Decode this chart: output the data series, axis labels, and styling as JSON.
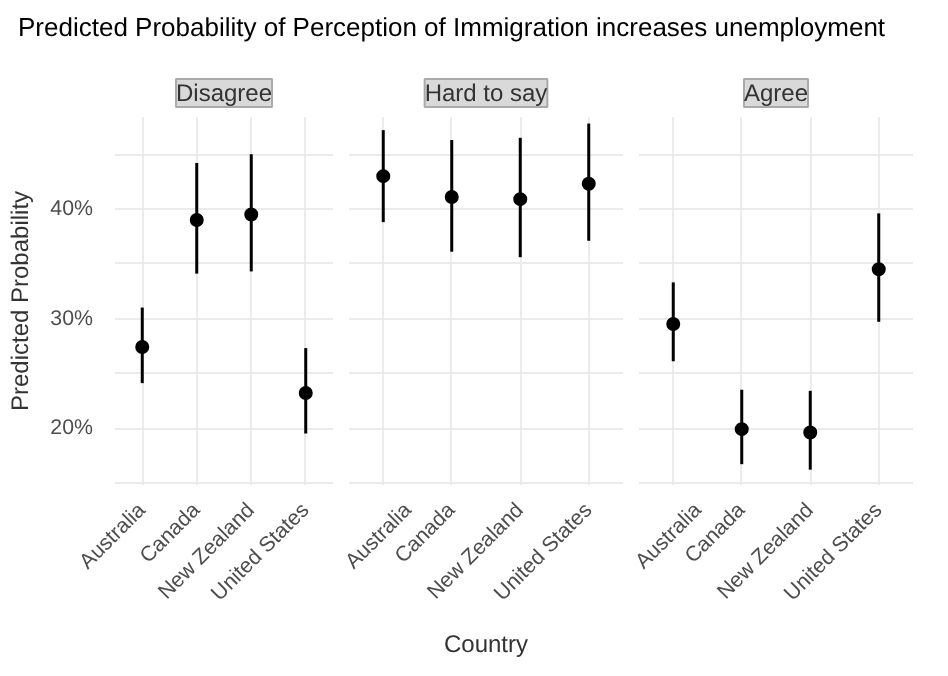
{
  "chart_data": [
    {
      "type": "scatter",
      "title": "Predicted Probability of Perception of Immigration increases unemployment",
      "subtitle": "Disagree",
      "ylabel": "Predicted Probability",
      "categories": [
        "Australia",
        "Canada",
        "New Zealand",
        "United States"
      ],
      "values": [
        27.4,
        39.0,
        39.5,
        23.2
      ],
      "errors": [
        [
          24.1,
          31.0
        ],
        [
          34.1,
          44.2
        ],
        [
          34.3,
          45.0
        ],
        [
          19.5,
          27.3
        ]
      ],
      "color": "#000000",
      "marker": "circle",
      "ylim": [
        14.8,
        48.4
      ],
      "yticks": [
        {
          "value": 15,
          "label": null
        },
        {
          "value": 20,
          "label": "20%"
        },
        {
          "value": 25,
          "label": null
        },
        {
          "value": 30,
          "label": "30%"
        },
        {
          "value": 35,
          "label": null
        },
        {
          "value": 40,
          "label": "40%"
        },
        {
          "value": 45,
          "label": null
        }
      ],
      "grid": true
    },
    {
      "type": "scatter",
      "subtitle": "Hard to say",
      "xlabel": "Country",
      "categories": [
        "Australia",
        "Canada",
        "New Zealand",
        "United States"
      ],
      "values": [
        43.0,
        41.1,
        40.9,
        42.3
      ],
      "errors": [
        [
          38.8,
          47.2
        ],
        [
          36.1,
          46.3
        ],
        [
          35.6,
          46.5
        ],
        [
          37.1,
          47.8
        ]
      ],
      "color": "#000000",
      "marker": "circle",
      "ylim": [
        14.8,
        48.4
      ],
      "tick_labels": "x",
      "grid": true
    },
    {
      "type": "scatter",
      "subtitle": "Agree",
      "categories": [
        "Australia",
        "Canada",
        "New Zealand",
        "United States"
      ],
      "values": [
        29.5,
        19.9,
        19.6,
        34.5
      ],
      "errors": [
        [
          26.1,
          33.3
        ],
        [
          16.7,
          23.5
        ],
        [
          16.2,
          23.4
        ],
        [
          29.7,
          39.6
        ]
      ],
      "color": "#000000",
      "marker": "circle",
      "ylim": [
        14.8,
        48.4
      ],
      "tick_labels": "x",
      "grid": true
    }
  ]
}
